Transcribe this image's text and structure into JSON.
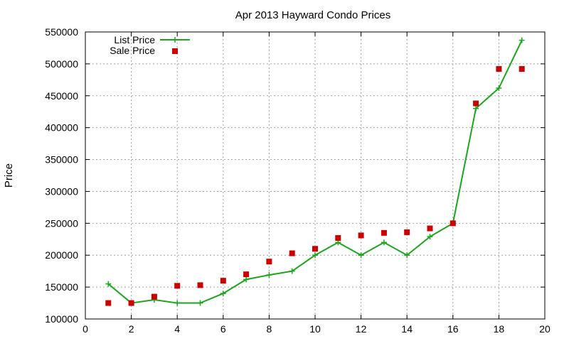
{
  "chart_data": {
    "type": "line",
    "title": "Apr 2013 Hayward Condo Prices",
    "xlabel": "",
    "ylabel": "Price",
    "xlim": [
      0,
      20
    ],
    "ylim": [
      100000,
      550000
    ],
    "x_ticks": [
      0,
      2,
      4,
      6,
      8,
      10,
      12,
      14,
      16,
      18,
      20
    ],
    "y_ticks": [
      100000,
      150000,
      200000,
      250000,
      300000,
      350000,
      400000,
      450000,
      500000,
      550000
    ],
    "grid": true,
    "legend_position": "top-left",
    "series": [
      {
        "name": "List Price",
        "style": "line-with-plus-markers",
        "color": "#1aa61a",
        "x": [
          1,
          2,
          3,
          4,
          5,
          6,
          7,
          8,
          9,
          10,
          11,
          12,
          13,
          14,
          15,
          16,
          17,
          18,
          19
        ],
        "y": [
          155000,
          125000,
          130000,
          125000,
          125000,
          140000,
          162000,
          169000,
          175000,
          200000,
          220000,
          200000,
          220000,
          200000,
          229000,
          250000,
          430000,
          462000,
          537000
        ]
      },
      {
        "name": "Sale Price",
        "style": "square-markers",
        "color": "#cc0000",
        "x": [
          1,
          2,
          3,
          4,
          5,
          6,
          7,
          8,
          9,
          10,
          11,
          12,
          13,
          14,
          15,
          16,
          17,
          18,
          19
        ],
        "y": [
          125000,
          125000,
          135000,
          152000,
          153000,
          160000,
          170000,
          190000,
          203000,
          210000,
          227000,
          231000,
          235000,
          236000,
          242000,
          250000,
          438000,
          492000,
          492000
        ]
      }
    ]
  }
}
